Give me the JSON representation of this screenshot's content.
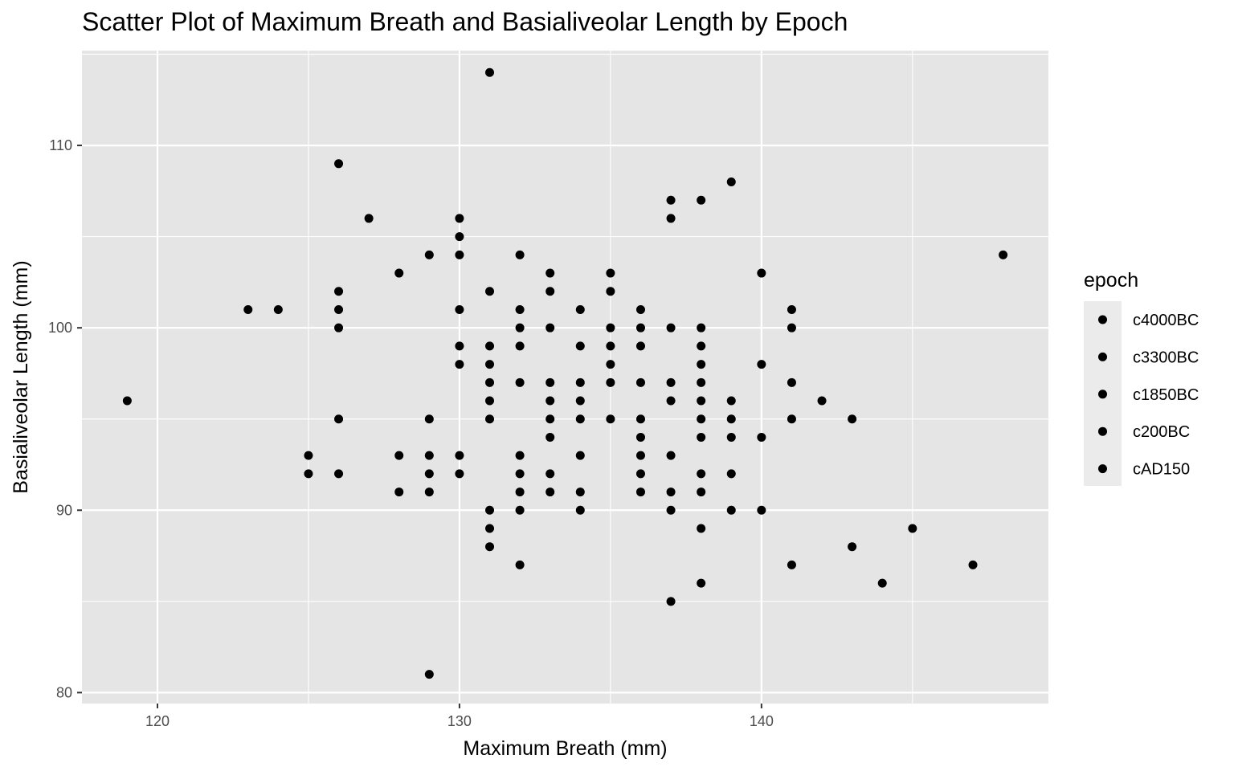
{
  "chart_data": {
    "type": "scatter",
    "title": "Scatter Plot of Maximum Breath and Basialiveolar Length by Epoch",
    "xlabel": "Maximum Breath (mm)",
    "ylabel": "Basialiveolar Length (mm)",
    "xlim": [
      117.5,
      149.5
    ],
    "ylim": [
      79.4,
      115.2
    ],
    "x_ticks": [
      120,
      130,
      140
    ],
    "y_ticks": [
      80,
      90,
      100,
      110
    ],
    "grid": true,
    "legend": {
      "title": "epoch",
      "position": "right",
      "entries": [
        "c4000BC",
        "c3300BC",
        "c1850BC",
        "c200BC",
        "cAD150"
      ]
    },
    "point_color": "#000000",
    "panel_color": "#e5e5e5",
    "grid_color": "#ffffff",
    "points": [
      [
        119,
        96
      ],
      [
        123,
        101
      ],
      [
        124,
        101
      ],
      [
        125,
        93
      ],
      [
        125,
        92
      ],
      [
        126,
        109
      ],
      [
        126,
        102
      ],
      [
        126,
        101
      ],
      [
        126,
        100
      ],
      [
        126,
        95
      ],
      [
        126,
        92
      ],
      [
        127,
        106
      ],
      [
        128,
        103
      ],
      [
        128,
        93
      ],
      [
        128,
        91
      ],
      [
        129,
        104
      ],
      [
        129,
        95
      ],
      [
        129,
        93
      ],
      [
        129,
        92
      ],
      [
        129,
        91
      ],
      [
        129,
        81
      ],
      [
        130,
        106
      ],
      [
        130,
        105
      ],
      [
        130,
        104
      ],
      [
        130,
        101
      ],
      [
        130,
        99
      ],
      [
        130,
        98
      ],
      [
        130,
        93
      ],
      [
        130,
        92
      ],
      [
        131,
        114
      ],
      [
        131,
        102
      ],
      [
        131,
        99
      ],
      [
        131,
        98
      ],
      [
        131,
        97
      ],
      [
        131,
        96
      ],
      [
        131,
        95
      ],
      [
        131,
        90
      ],
      [
        131,
        89
      ],
      [
        131,
        88
      ],
      [
        132,
        104
      ],
      [
        132,
        101
      ],
      [
        132,
        100
      ],
      [
        132,
        99
      ],
      [
        132,
        97
      ],
      [
        132,
        93
      ],
      [
        132,
        92
      ],
      [
        132,
        91
      ],
      [
        132,
        90
      ],
      [
        132,
        87
      ],
      [
        133,
        103
      ],
      [
        133,
        102
      ],
      [
        133,
        100
      ],
      [
        133,
        97
      ],
      [
        133,
        96
      ],
      [
        133,
        95
      ],
      [
        133,
        94
      ],
      [
        133,
        92
      ],
      [
        133,
        91
      ],
      [
        134,
        101
      ],
      [
        134,
        99
      ],
      [
        134,
        97
      ],
      [
        134,
        96
      ],
      [
        134,
        95
      ],
      [
        134,
        93
      ],
      [
        134,
        91
      ],
      [
        134,
        90
      ],
      [
        135,
        103
      ],
      [
        135,
        102
      ],
      [
        135,
        100
      ],
      [
        135,
        99
      ],
      [
        135,
        98
      ],
      [
        135,
        97
      ],
      [
        135,
        95
      ],
      [
        136,
        101
      ],
      [
        136,
        100
      ],
      [
        136,
        99
      ],
      [
        136,
        97
      ],
      [
        136,
        95
      ],
      [
        136,
        94
      ],
      [
        136,
        93
      ],
      [
        136,
        92
      ],
      [
        136,
        91
      ],
      [
        137,
        107
      ],
      [
        137,
        106
      ],
      [
        137,
        100
      ],
      [
        137,
        97
      ],
      [
        137,
        96
      ],
      [
        137,
        93
      ],
      [
        137,
        91
      ],
      [
        137,
        90
      ],
      [
        137,
        85
      ],
      [
        138,
        107
      ],
      [
        138,
        100
      ],
      [
        138,
        99
      ],
      [
        138,
        98
      ],
      [
        138,
        97
      ],
      [
        138,
        96
      ],
      [
        138,
        95
      ],
      [
        138,
        94
      ],
      [
        138,
        92
      ],
      [
        138,
        91
      ],
      [
        138,
        89
      ],
      [
        138,
        86
      ],
      [
        139,
        108
      ],
      [
        139,
        96
      ],
      [
        139,
        95
      ],
      [
        139,
        94
      ],
      [
        139,
        92
      ],
      [
        139,
        90
      ],
      [
        140,
        103
      ],
      [
        140,
        98
      ],
      [
        140,
        94
      ],
      [
        140,
        90
      ],
      [
        141,
        101
      ],
      [
        141,
        100
      ],
      [
        141,
        97
      ],
      [
        141,
        95
      ],
      [
        141,
        87
      ],
      [
        142,
        96
      ],
      [
        143,
        95
      ],
      [
        143,
        88
      ],
      [
        144,
        86
      ],
      [
        145,
        89
      ],
      [
        147,
        87
      ],
      [
        148,
        104
      ]
    ]
  }
}
